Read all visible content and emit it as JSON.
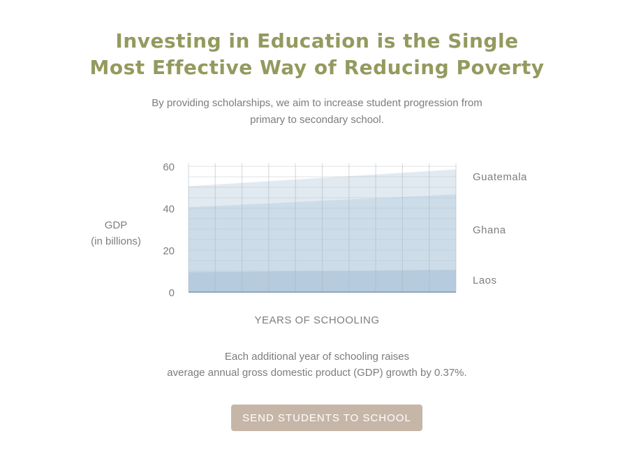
{
  "heading": {
    "line1": "Investing in Education is the Single",
    "line2": "Most Effective Way of Reducing Poverty"
  },
  "intro": {
    "line1": "By providing scholarships, we aim to increase student progression from",
    "line2": "primary to secondary school."
  },
  "chart_data": {
    "type": "area",
    "title": "",
    "xlabel": "YEARS OF SCHOOLING",
    "ylabel": [
      "GDP",
      "(in billions)"
    ],
    "ylim": [
      0,
      60
    ],
    "yticks": [
      "0",
      "20",
      "40",
      "60"
    ],
    "x": [
      0,
      1,
      2,
      3,
      4,
      5,
      6,
      7,
      8,
      9,
      10
    ],
    "grid": true,
    "legend_placement": "right",
    "series": [
      {
        "name": "Guatemala",
        "color": "#e2eaf1",
        "values": [
          50.5,
          51.3,
          52.1,
          52.9,
          53.7,
          54.5,
          55.3,
          56.1,
          56.9,
          57.7,
          58.5
        ]
      },
      {
        "name": "Ghana",
        "color": "#ccdde9",
        "values": [
          40.5,
          41.1,
          41.7,
          42.3,
          42.9,
          43.6,
          44.2,
          44.8,
          45.4,
          46.0,
          46.7
        ]
      },
      {
        "name": "Laos",
        "color": "#b6ccde",
        "values": [
          9.5,
          9.6,
          9.7,
          9.8,
          9.9,
          10.0,
          10.1,
          10.2,
          10.4,
          10.5,
          10.6
        ]
      }
    ]
  },
  "footnote": {
    "line1": "Each additional year of schooling raises",
    "line2": "average annual gross domestic product (GDP) growth by 0.37%."
  },
  "cta": {
    "label": "SEND STUDENTS TO SCHOOL"
  }
}
